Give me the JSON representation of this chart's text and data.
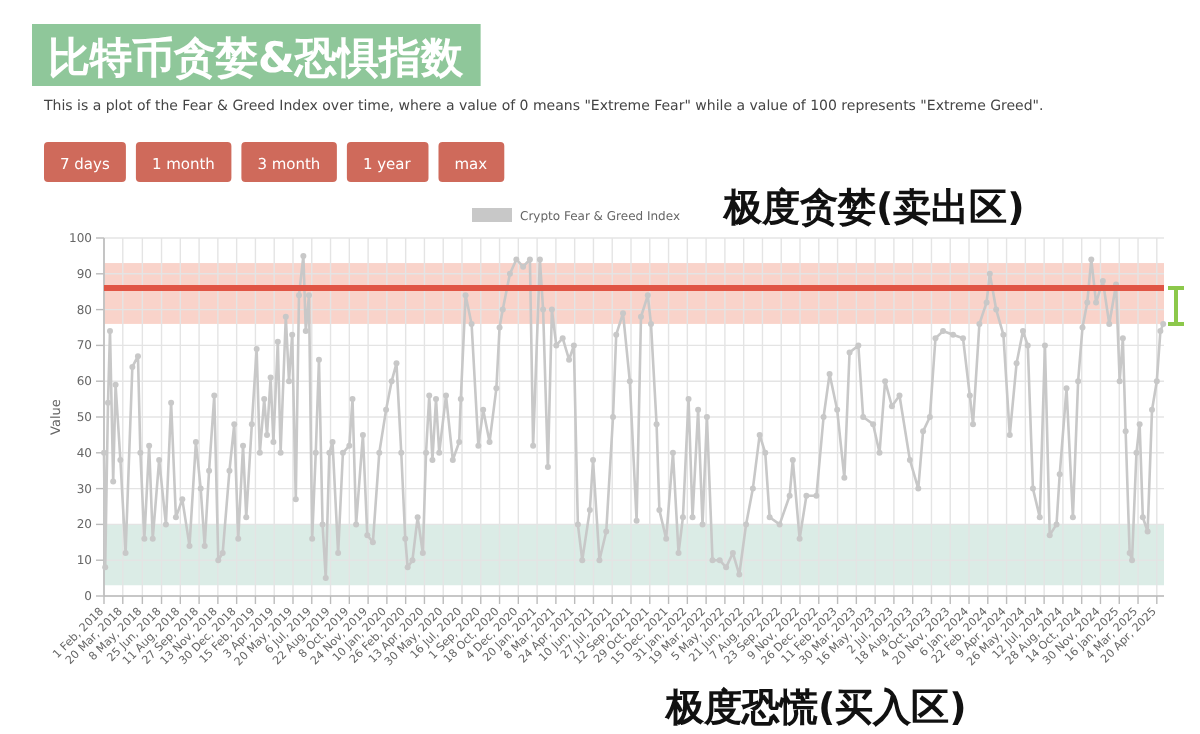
{
  "chart_data": {
    "type": "line",
    "title": "比特币贪婪&恐惧指数",
    "subtitle": "This is a plot of the Fear & Greed Index over time, where a value of 0 means \"Extreme Fear\" while a value of 100 represents \"Extreme Greed\".",
    "annotations": [
      "7 days",
      "1 month",
      "3 month",
      "1 year",
      "max"
    ],
    "ylabel": "Value",
    "x": [
      "2018-02-01",
      "2018-02-04",
      "2018-02-11",
      "2018-02-16",
      "2018-02-24",
      "2018-03-02",
      "2018-03-14",
      "2018-03-27",
      "2018-04-13",
      "2018-04-27",
      "2018-05-03",
      "2018-05-13",
      "2018-05-25",
      "2018-06-03",
      "2018-06-19",
      "2018-07-06",
      "2018-07-19",
      "2018-07-31",
      "2018-08-16",
      "2018-09-03",
      "2018-09-19",
      "2018-10-01",
      "2018-10-11",
      "2018-10-22",
      "2018-11-04",
      "2018-11-14",
      "2018-11-25",
      "2018-12-12",
      "2018-12-24",
      "2019-01-03",
      "2019-01-15",
      "2019-01-23",
      "2019-02-06",
      "2019-02-18",
      "2019-02-26",
      "2019-03-09",
      "2019-03-16",
      "2019-03-25",
      "2019-04-01",
      "2019-04-12",
      "2019-04-19",
      "2019-05-02",
      "2019-05-10",
      "2019-05-18",
      "2019-05-27",
      "2019-06-04",
      "2019-06-15",
      "2019-06-21",
      "2019-06-29",
      "2019-07-07",
      "2019-07-16",
      "2019-07-24",
      "2019-08-02",
      "2019-08-10",
      "2019-08-19",
      "2019-08-27",
      "2019-09-10",
      "2019-09-22",
      "2019-10-08",
      "2019-10-16",
      "2019-10-25",
      "2019-11-11",
      "2019-11-22",
      "2019-12-06",
      "2019-12-22",
      "2020-01-08",
      "2020-01-22",
      "2020-02-03",
      "2020-02-15",
      "2020-02-25",
      "2020-03-02",
      "2020-03-14",
      "2020-03-27",
      "2020-04-09",
      "2020-04-17",
      "2020-04-25",
      "2020-05-03",
      "2020-05-12",
      "2020-05-20",
      "2020-06-06",
      "2020-06-23",
      "2020-07-09",
      "2020-07-13",
      "2020-07-25",
      "2020-08-09",
      "2020-08-26",
      "2020-09-07",
      "2020-09-23",
      "2020-10-10",
      "2020-10-18",
      "2020-10-26",
      "2020-11-13",
      "2020-11-29",
      "2020-12-16",
      "2021-01-02",
      "2021-01-10",
      "2021-01-27",
      "2021-02-04",
      "2021-02-16",
      "2021-02-26",
      "2021-03-09",
      "2021-03-25",
      "2021-04-10",
      "2021-04-22",
      "2021-05-02",
      "2021-05-13",
      "2021-06-01",
      "2021-06-09",
      "2021-06-25",
      "2021-07-12",
      "2021-07-29",
      "2021-08-06",
      "2021-08-23",
      "2021-09-09",
      "2021-09-26",
      "2021-10-07",
      "2021-10-24",
      "2021-11-01",
      "2021-11-15",
      "2021-11-22",
      "2021-12-09",
      "2021-12-26",
      "2022-01-09",
      "2022-01-20",
      "2022-02-03",
      "2022-02-13",
      "2022-02-27",
      "2022-03-10",
      "2022-03-21",
      "2022-04-04",
      "2022-04-22",
      "2022-05-08",
      "2022-05-25",
      "2022-06-10",
      "2022-06-27",
      "2022-07-14",
      "2022-07-31",
      "2022-08-14",
      "2022-08-25",
      "2022-09-19",
      "2022-10-14",
      "2022-10-22",
      "2022-11-08",
      "2022-11-25",
      "2022-12-20",
      "2023-01-07",
      "2023-01-22",
      "2023-02-10",
      "2023-02-28",
      "2023-03-13",
      "2023-04-04",
      "2023-04-16",
      "2023-05-11",
      "2023-05-27",
      "2023-06-10",
      "2023-06-27",
      "2023-07-16",
      "2023-08-11",
      "2023-09-01",
      "2023-09-13",
      "2023-09-30",
      "2023-10-14",
      "2023-11-02",
      "2023-11-27",
      "2023-12-22",
      "2024-01-08",
      "2024-01-16",
      "2024-02-01",
      "2024-02-19",
      "2024-02-27",
      "2024-03-14",
      "2024-04-01",
      "2024-04-17",
      "2024-05-04",
      "2024-05-20",
      "2024-06-01",
      "2024-06-14",
      "2024-07-01",
      "2024-07-14",
      "2024-07-26",
      "2024-08-12",
      "2024-08-20",
      "2024-09-06",
      "2024-09-22",
      "2024-10-05",
      "2024-10-16",
      "2024-10-28",
      "2024-11-07",
      "2024-11-19",
      "2024-12-06",
      "2024-12-22",
      "2025-01-08",
      "2025-01-17",
      "2025-01-25",
      "2025-02-01",
      "2025-02-11",
      "2025-02-17",
      "2025-02-28",
      "2025-03-08",
      "2025-03-16",
      "2025-03-28",
      "2025-04-08",
      "2025-04-20",
      "2025-04-29",
      "2025-05-06"
    ],
    "series": [
      {
        "name": "Crypto Fear & Greed Index",
        "color": "#c8c8c8",
        "values": [
          40,
          8,
          54,
          74,
          32,
          59,
          38,
          12,
          64,
          67,
          40,
          16,
          42,
          16,
          38,
          20,
          54,
          22,
          27,
          14,
          43,
          30,
          14,
          35,
          56,
          10,
          12,
          35,
          48,
          16,
          42,
          22,
          48,
          69,
          40,
          55,
          45,
          61,
          43,
          71,
          40,
          78,
          60,
          73,
          27,
          84,
          95,
          74,
          84,
          16,
          40,
          66,
          20,
          5,
          40,
          43,
          12,
          40,
          42,
          55,
          20,
          45,
          17,
          15,
          40,
          52,
          60,
          65,
          40,
          16,
          8,
          10,
          22,
          12,
          40,
          56,
          38,
          55,
          40,
          56,
          38,
          43,
          55,
          84,
          76,
          42,
          52,
          43,
          58,
          75,
          80,
          90,
          94,
          92,
          94,
          42,
          94,
          80,
          36,
          80,
          70,
          72,
          66,
          70,
          20,
          10,
          24,
          38,
          10,
          18,
          50,
          73,
          79,
          60,
          21,
          78,
          84,
          76,
          48,
          24,
          16,
          40,
          12,
          22,
          55,
          22,
          52,
          20,
          50,
          10,
          10,
          8,
          12,
          6,
          20,
          30,
          45,
          40,
          22,
          20,
          28,
          38,
          16,
          28,
          28,
          50,
          62,
          52,
          33,
          68,
          70,
          50,
          48,
          40,
          60,
          53,
          56,
          38,
          30,
          46,
          50,
          72,
          74,
          73,
          72,
          56,
          48,
          76,
          82,
          90,
          80,
          73,
          45,
          65,
          74,
          70,
          30,
          22,
          70,
          17,
          20,
          34,
          58,
          22,
          60,
          75,
          82,
          94,
          82,
          88,
          76,
          87,
          60,
          72,
          46,
          12,
          10,
          40,
          48,
          22,
          18,
          52,
          60,
          74,
          76
        ]
      }
    ],
    "xlim": [
      "2018-02-01",
      "2025-05-08"
    ],
    "xticks": [
      {
        "value": "2018-02-01",
        "label": "1 Feb, 2018"
      },
      {
        "value": "2018-03-20",
        "label": "20 Mar, 2018"
      },
      {
        "value": "2018-05-08",
        "label": "8 May, 2018"
      },
      {
        "value": "2018-06-25",
        "label": "25 Jun, 2018"
      },
      {
        "value": "2018-08-11",
        "label": "11 Aug, 2018"
      },
      {
        "value": "2018-09-27",
        "label": "27 Sep, 2018"
      },
      {
        "value": "2018-11-13",
        "label": "13 Nov, 2018"
      },
      {
        "value": "2018-12-30",
        "label": "30 Dec, 2018"
      },
      {
        "value": "2019-02-15",
        "label": "15 Feb, 2019"
      },
      {
        "value": "2019-04-03",
        "label": "3 Apr, 2019"
      },
      {
        "value": "2019-05-20",
        "label": "20 May, 2019"
      },
      {
        "value": "2019-07-06",
        "label": "6 Jul, 2019"
      },
      {
        "value": "2019-08-22",
        "label": "22 Aug, 2019"
      },
      {
        "value": "2019-10-08",
        "label": "8 Oct, 2019"
      },
      {
        "value": "2019-11-24",
        "label": "24 Nov, 2019"
      },
      {
        "value": "2020-01-10",
        "label": "10 Jan, 2020"
      },
      {
        "value": "2020-02-26",
        "label": "26 Feb, 2020"
      },
      {
        "value": "2020-04-13",
        "label": "13 Apr, 2020"
      },
      {
        "value": "2020-05-30",
        "label": "30 May, 2020"
      },
      {
        "value": "2020-07-16",
        "label": "16 Jul, 2020"
      },
      {
        "value": "2020-09-01",
        "label": "1 Sep, 2020"
      },
      {
        "value": "2020-10-18",
        "label": "18 Oct, 2020"
      },
      {
        "value": "2020-12-04",
        "label": "4 Dec, 2020"
      },
      {
        "value": "2021-01-20",
        "label": "20 Jan, 2021"
      },
      {
        "value": "2021-03-08",
        "label": "8 Mar, 2021"
      },
      {
        "value": "2021-04-24",
        "label": "24 Apr, 2021"
      },
      {
        "value": "2021-06-10",
        "label": "10 Jun, 2021"
      },
      {
        "value": "2021-07-27",
        "label": "27 Jul, 2021"
      },
      {
        "value": "2021-09-12",
        "label": "12 Sep, 2021"
      },
      {
        "value": "2021-10-29",
        "label": "29 Oct, 2021"
      },
      {
        "value": "2021-12-15",
        "label": "15 Dec, 2021"
      },
      {
        "value": "2022-01-31",
        "label": "31 Jan, 2022"
      },
      {
        "value": "2022-03-19",
        "label": "19 Mar, 2022"
      },
      {
        "value": "2022-05-05",
        "label": "5 May, 2022"
      },
      {
        "value": "2022-06-21",
        "label": "21 Jun, 2022"
      },
      {
        "value": "2022-08-07",
        "label": "7 Aug, 2022"
      },
      {
        "value": "2022-09-23",
        "label": "23 Sep, 2022"
      },
      {
        "value": "2022-11-09",
        "label": "9 Nov, 2022"
      },
      {
        "value": "2022-12-26",
        "label": "26 Dec, 2022"
      },
      {
        "value": "2023-02-11",
        "label": "11 Feb, 2023"
      },
      {
        "value": "2023-03-30",
        "label": "30 Mar, 2023"
      },
      {
        "value": "2023-05-16",
        "label": "16 May, 2023"
      },
      {
        "value": "2023-07-02",
        "label": "2 Jul, 2023"
      },
      {
        "value": "2023-08-18",
        "label": "18 Aug, 2023"
      },
      {
        "value": "2023-10-04",
        "label": "4 Oct, 2023"
      },
      {
        "value": "2023-11-20",
        "label": "20 Nov, 2023"
      },
      {
        "value": "2024-01-06",
        "label": "6 Jan, 2024"
      },
      {
        "value": "2024-02-22",
        "label": "22 Feb, 2024"
      },
      {
        "value": "2024-04-09",
        "label": "9 Apr, 2024"
      },
      {
        "value": "2024-05-26",
        "label": "26 May, 2024"
      },
      {
        "value": "2024-07-12",
        "label": "12 Jul, 2024"
      },
      {
        "value": "2024-08-28",
        "label": "28 Aug, 2024"
      },
      {
        "value": "2024-10-14",
        "label": "14 Oct, 2024"
      },
      {
        "value": "2024-11-30",
        "label": "30 Nov, 2024"
      },
      {
        "value": "2025-01-16",
        "label": "16 Jan, 2025"
      },
      {
        "value": "2025-03-04",
        "label": "4 Mar, 2025"
      },
      {
        "value": "2025-04-20",
        "label": "20 Apr, 2025"
      }
    ],
    "ylim": [
      0,
      100
    ],
    "yticks": [
      0,
      10,
      20,
      30,
      40,
      50,
      60,
      70,
      80,
      90,
      100
    ],
    "bands": [
      {
        "axis": "y",
        "from": 76,
        "to": 93,
        "label": "极度贪婪(卖出区)",
        "color": "#f7c4b8"
      },
      {
        "axis": "y",
        "from": 3,
        "to": 20,
        "label": "极度恐慌(买入区)",
        "color": "#cfe6de"
      }
    ],
    "ref_lines": [
      {
        "axis": "y",
        "value": 86,
        "color": "#e05545"
      }
    ],
    "grid": true,
    "legend": "top",
    "marker": "circle"
  }
}
